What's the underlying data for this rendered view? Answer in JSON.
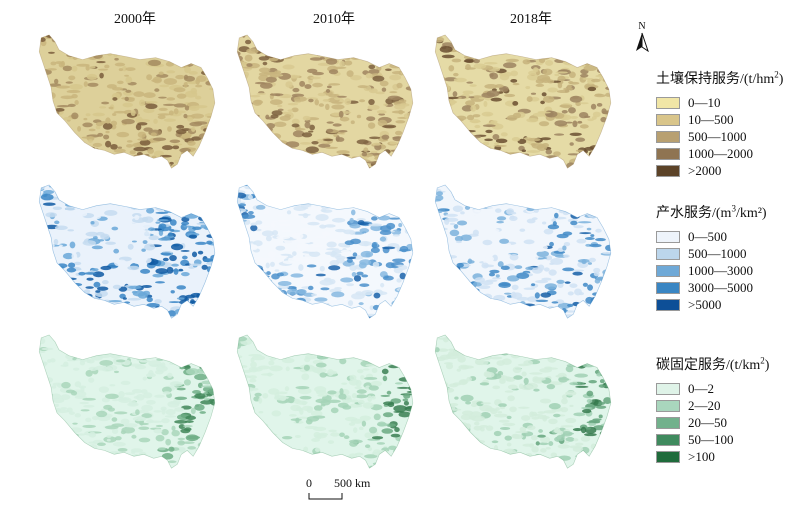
{
  "years": [
    "2000年",
    "2010年",
    "2018年"
  ],
  "rows": [
    {
      "title_main": "土壤保持服务/(t/hm",
      "title_sup": "2",
      "title_end": ")",
      "series": [
        [
          "#ddd09a",
          "#d6c78c",
          "#c9b57c",
          "#a48b60",
          "#7a5d3c"
        ],
        [
          "#e3d7a2",
          "#d8c990",
          "#c8b47e",
          "#a08560",
          "#7d6040"
        ],
        [
          "#e5dba6",
          "#d9cb92",
          "#c7b37d",
          "#9e8460",
          "#6b4f31"
        ]
      ],
      "legend": [
        {
          "label": "0—10",
          "color": "#f1e6a6"
        },
        {
          "label": "10—500",
          "color": "#d9c58a"
        },
        {
          "label": "500—1000",
          "color": "#b8a071"
        },
        {
          "label": "1000—2000",
          "color": "#8f7452"
        },
        {
          "label": ">2000",
          "color": "#5c4328"
        }
      ]
    },
    {
      "title_main": "产水服务/(m",
      "title_sup": "3",
      "title_end": "/km²)",
      "series": [
        [
          "#eaf2fb",
          "#c5dcf0",
          "#6aa8d8",
          "#3a86c6",
          "#0f5aa3"
        ],
        [
          "#f4f8fd",
          "#d6e6f5",
          "#86b9e0",
          "#4b91cb",
          "#1a63aa"
        ],
        [
          "#f1f6fc",
          "#d0e2f3",
          "#7bb2dc",
          "#4189c7",
          "#155ea6"
        ]
      ],
      "legend": [
        {
          "label": "0—500",
          "color": "#eef4fb"
        },
        {
          "label": "500—1000",
          "color": "#bcd6ec"
        },
        {
          "label": "1000—3000",
          "color": "#6fa9d7"
        },
        {
          "label": "3000—5000",
          "color": "#3a86c3"
        },
        {
          "label": ">5000",
          "color": "#0d4f97"
        }
      ]
    },
    {
      "title_main": "碳固定服务/(t/km",
      "title_sup": "2",
      "title_end": ")",
      "series": [
        [
          "#e0f5ea",
          "#d5efe0",
          "#a9d6bb",
          "#6fae86",
          "#3f8658"
        ],
        [
          "#e0f5ea",
          "#d3eede",
          "#a4d3b7",
          "#6aa981",
          "#3a7f52"
        ],
        [
          "#e0f5ea",
          "#d2ecdc",
          "#a0d0b4",
          "#64a57c",
          "#357a4e"
        ]
      ],
      "legend": [
        {
          "label": "0—2",
          "color": "#dff3e8"
        },
        {
          "label": "2—20",
          "color": "#a9d6bd"
        },
        {
          "label": "20—50",
          "color": "#72b18c"
        },
        {
          "label": "50—100",
          "color": "#3f8a5e"
        },
        {
          "label": ">100",
          "color": "#1f6b3b"
        }
      ]
    }
  ],
  "north_label": "N",
  "scale": {
    "start": "0",
    "end": "500 km"
  }
}
